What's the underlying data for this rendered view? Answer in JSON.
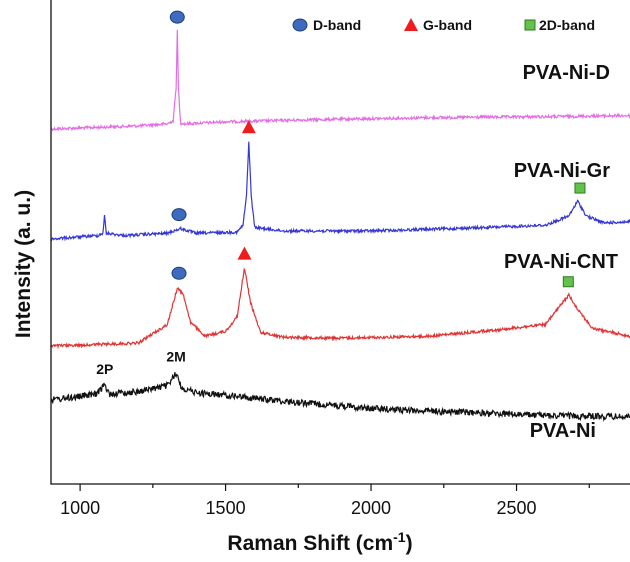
{
  "chart_data": {
    "type": "line",
    "xlabel": "Raman Shift (cm",
    "xlabel_superscript": "-1",
    "xlabel_suffix": ")",
    "ylabel": "Intensity (a. u.)",
    "xlim": [
      900,
      2890
    ],
    "x_ticks": [
      1000,
      1500,
      2000,
      2500
    ],
    "y_ticks_shown": false,
    "grid": false,
    "legend_position": "top-right",
    "legend": [
      {
        "label": "D-band",
        "marker": "circle",
        "color": "#3f6bbf"
      },
      {
        "label": "G-band",
        "marker": "triangle",
        "color": "#ee1c1c"
      },
      {
        "label": "2D-band",
        "marker": "square",
        "color": "#62c24a"
      }
    ],
    "series": [
      {
        "name": "PVA-Ni-D",
        "color": "#e36ee3",
        "points": [
          [
            900,
            0.0
          ],
          [
            1200,
            0.03
          ],
          [
            1300,
            0.05
          ],
          [
            1320,
            0.08
          ],
          [
            1330,
            0.4
          ],
          [
            1334,
            0.95
          ],
          [
            1338,
            0.4
          ],
          [
            1345,
            0.06
          ],
          [
            1360,
            0.05
          ],
          [
            1500,
            0.07
          ],
          [
            1800,
            0.09
          ],
          [
            2200,
            0.11
          ],
          [
            2600,
            0.12
          ],
          [
            2890,
            0.13
          ]
        ]
      },
      {
        "name": "PVA-Ni-Gr",
        "color": "#3535d8",
        "points": [
          [
            900,
            0.0
          ],
          [
            1060,
            0.03
          ],
          [
            1078,
            0.05
          ],
          [
            1084,
            0.2
          ],
          [
            1090,
            0.05
          ],
          [
            1150,
            0.03
          ],
          [
            1300,
            0.05
          ],
          [
            1345,
            0.09
          ],
          [
            1400,
            0.05
          ],
          [
            1540,
            0.06
          ],
          [
            1560,
            0.12
          ],
          [
            1572,
            0.38
          ],
          [
            1580,
            0.85
          ],
          [
            1588,
            0.38
          ],
          [
            1600,
            0.1
          ],
          [
            1700,
            0.07
          ],
          [
            2000,
            0.07
          ],
          [
            2400,
            0.1
          ],
          [
            2600,
            0.12
          ],
          [
            2680,
            0.2
          ],
          [
            2710,
            0.33
          ],
          [
            2740,
            0.2
          ],
          [
            2800,
            0.14
          ],
          [
            2890,
            0.15
          ]
        ]
      },
      {
        "name": "PVA-Ni-CNT",
        "color": "#e03434",
        "points": [
          [
            900,
            0.0
          ],
          [
            1200,
            0.03
          ],
          [
            1300,
            0.22
          ],
          [
            1335,
            0.6
          ],
          [
            1355,
            0.52
          ],
          [
            1380,
            0.24
          ],
          [
            1430,
            0.1
          ],
          [
            1500,
            0.15
          ],
          [
            1540,
            0.3
          ],
          [
            1565,
            0.8
          ],
          [
            1585,
            0.45
          ],
          [
            1620,
            0.14
          ],
          [
            1700,
            0.09
          ],
          [
            1900,
            0.08
          ],
          [
            2200,
            0.1
          ],
          [
            2450,
            0.17
          ],
          [
            2600,
            0.22
          ],
          [
            2655,
            0.43
          ],
          [
            2680,
            0.52
          ],
          [
            2705,
            0.4
          ],
          [
            2760,
            0.18
          ],
          [
            2890,
            0.1
          ]
        ]
      },
      {
        "name": "PVA-Ni",
        "color": "#111111",
        "points": [
          [
            900,
            0.0
          ],
          [
            1000,
            0.03
          ],
          [
            1060,
            0.05
          ],
          [
            1082,
            0.13
          ],
          [
            1100,
            0.05
          ],
          [
            1200,
            0.07
          ],
          [
            1300,
            0.12
          ],
          [
            1330,
            0.22
          ],
          [
            1350,
            0.1
          ],
          [
            1400,
            0.06
          ],
          [
            1500,
            0.04
          ],
          [
            1700,
            -0.01
          ],
          [
            2000,
            -0.07
          ],
          [
            2300,
            -0.1
          ],
          [
            2600,
            -0.13
          ],
          [
            2890,
            -0.14
          ]
        ]
      }
    ],
    "markers": [
      {
        "series": "PVA-Ni-D",
        "band": "D-band",
        "x": 1334
      },
      {
        "series": "PVA-Ni-Gr",
        "band": "D-band",
        "x": 1340
      },
      {
        "series": "PVA-Ni-Gr",
        "band": "G-band",
        "x": 1580
      },
      {
        "series": "PVA-Ni-Gr",
        "band": "2D-band",
        "x": 2718
      },
      {
        "series": "PVA-Ni-CNT",
        "band": "D-band",
        "x": 1340
      },
      {
        "series": "PVA-Ni-CNT",
        "band": "G-band",
        "x": 1565
      },
      {
        "series": "PVA-Ni-CNT",
        "band": "2D-band",
        "x": 2678
      }
    ],
    "annotations": [
      {
        "series": "PVA-Ni",
        "text": "2P",
        "x": 1085
      },
      {
        "series": "PVA-Ni",
        "text": "2M",
        "x": 1330
      }
    ]
  }
}
